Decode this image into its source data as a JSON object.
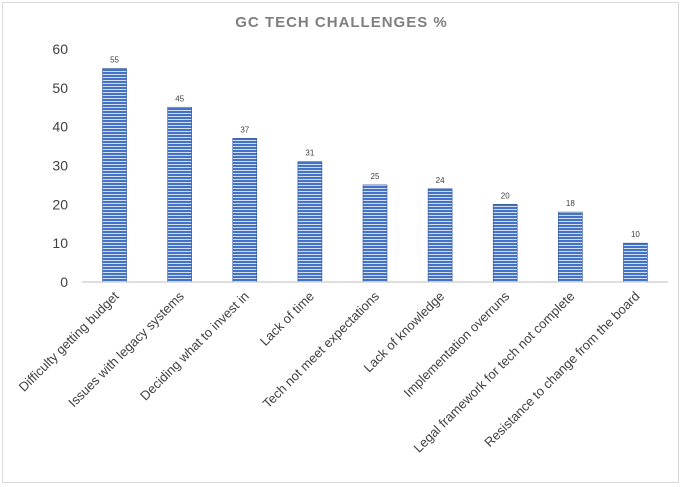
{
  "chart_data": {
    "type": "bar",
    "title": "GC TECH CHALLENGES %",
    "xlabel": "",
    "ylabel": "",
    "ylim": [
      0,
      60
    ],
    "yticks": [
      0,
      10,
      20,
      30,
      40,
      50,
      60
    ],
    "grid": false,
    "legend": "none",
    "categories": [
      "Difficulty getting budget",
      "Issues with legacy systems",
      "Deciding what to invest in",
      "Lack of time",
      "Tech not meet expectations",
      "Lack of knowledge",
      "Implementation overruns",
      "Legal framework for tech not complete",
      "Resistance to change from the board"
    ],
    "values": [
      55,
      45,
      37,
      31,
      25,
      24,
      20,
      18,
      10
    ],
    "colors": {
      "bar_fill": "#4472c4",
      "bar_stripe": "#ffffff",
      "title": "#7f7f7f",
      "axis_text": "#404040",
      "axis_line": "#bfbfbf"
    }
  }
}
